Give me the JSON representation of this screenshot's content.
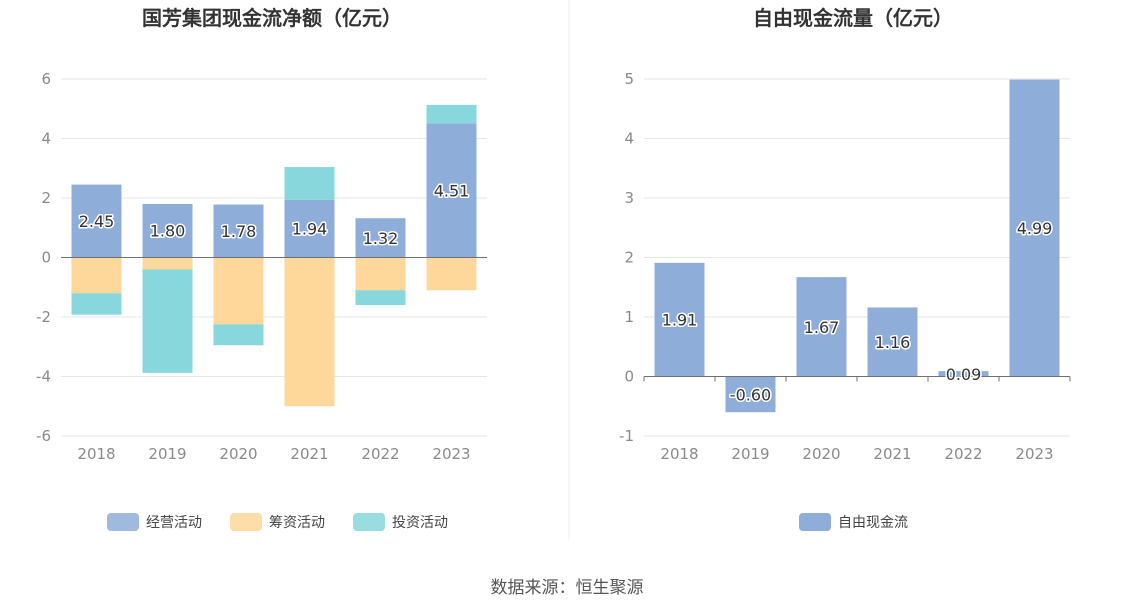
{
  "source": "数据来源：恒生聚源",
  "chart_data": [
    {
      "type": "bar",
      "stacked": true,
      "title": "国芳集团现金流净额（亿元）",
      "categories": [
        "2018",
        "2019",
        "2020",
        "2021",
        "2022",
        "2023"
      ],
      "ylim": [
        -6,
        6
      ],
      "yticks": [
        -6,
        -4,
        -2,
        0,
        2,
        4,
        6
      ],
      "grid": true,
      "legend_position": "bottom",
      "series": [
        {
          "name": "经营活动",
          "color": "#8eadd9",
          "values": [
            2.45,
            1.8,
            1.78,
            1.94,
            1.32,
            4.51
          ],
          "labels": [
            "2.45",
            "1.80",
            "1.78",
            "1.94",
            "1.32",
            "4.51"
          ]
        },
        {
          "name": "筹资活动",
          "color": "#fdd89a",
          "values": [
            -1.2,
            -0.4,
            -2.25,
            -5.0,
            -1.1,
            -1.1
          ]
        },
        {
          "name": "投资活动",
          "color": "#87d7dc",
          "values": [
            -0.72,
            -3.48,
            -0.7,
            1.1,
            -0.5,
            0.62
          ]
        }
      ]
    },
    {
      "type": "bar",
      "title": "自由现金流量（亿元）",
      "categories": [
        "2018",
        "2019",
        "2020",
        "2021",
        "2022",
        "2023"
      ],
      "ylim": [
        -1,
        5
      ],
      "yticks": [
        -1,
        0,
        1,
        2,
        3,
        4,
        5
      ],
      "grid": true,
      "legend_position": "bottom",
      "series": [
        {
          "name": "自由现金流",
          "color": "#8eadd9",
          "values": [
            1.91,
            -0.6,
            1.67,
            1.16,
            0.09,
            4.99
          ],
          "labels": [
            "1.91",
            "-0.60",
            "1.67",
            "1.16",
            "0.09",
            "4.99"
          ]
        }
      ]
    }
  ]
}
